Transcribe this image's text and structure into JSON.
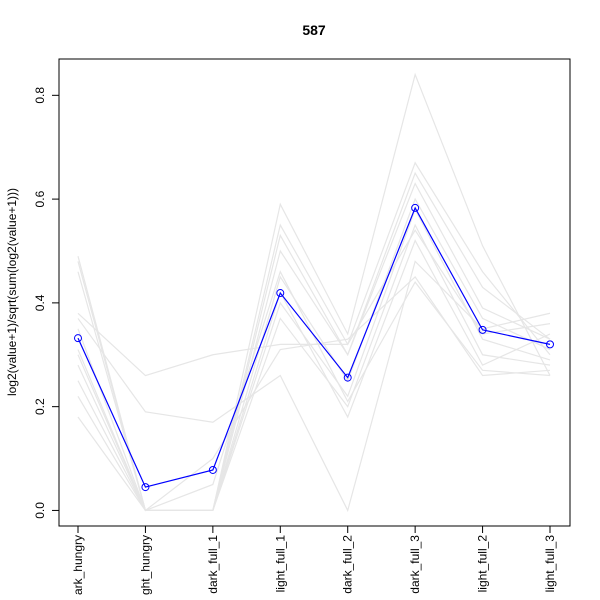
{
  "chart_data": {
    "type": "line",
    "title": "587",
    "xlabel": "",
    "ylabel": "log2(value+1)/sqrt(sum(log2(value+1)))",
    "ylim": [
      -0.03,
      0.87
    ],
    "yticks": [
      0.0,
      0.2,
      0.4,
      0.6,
      0.8
    ],
    "ytick_labels": [
      "0.0",
      "0.2",
      "0.4",
      "0.6",
      "0.8"
    ],
    "categories": [
      "dark_hungry",
      "light_hungry",
      "dark_full_1",
      "light_full_1",
      "dark_full_2",
      "dark_full_3",
      "light_full_2",
      "light_full_3"
    ],
    "category_labels": [
      "ark_hungry",
      "ght_hungry",
      "dark_full_1",
      "light_full_1",
      "dark_full_2",
      "dark_full_3",
      "light_full_2",
      "light_full_3"
    ],
    "grid": false,
    "legend": "none",
    "highlight": {
      "color": "#0000ff",
      "marker": "open-circle",
      "values": [
        0.332,
        0.045,
        0.078,
        0.419,
        0.256,
        0.583,
        0.348,
        0.32
      ]
    },
    "background_series": {
      "color": "#e6e6e6",
      "series": [
        [
          0.49,
          0.0,
          0.0,
          0.59,
          0.34,
          0.84,
          0.51,
          0.26
        ],
        [
          0.48,
          0.0,
          0.0,
          0.55,
          0.32,
          0.67,
          0.46,
          0.3
        ],
        [
          0.46,
          0.0,
          0.0,
          0.53,
          0.3,
          0.65,
          0.43,
          0.33
        ],
        [
          0.38,
          0.26,
          0.3,
          0.32,
          0.32,
          0.54,
          0.34,
          0.36
        ],
        [
          0.37,
          0.19,
          0.17,
          0.26,
          0.0,
          0.48,
          0.35,
          0.38
        ],
        [
          0.31,
          0.0,
          0.0,
          0.5,
          0.3,
          0.63,
          0.39,
          0.33
        ],
        [
          0.28,
          0.0,
          0.0,
          0.45,
          0.25,
          0.6,
          0.37,
          0.31
        ],
        [
          0.25,
          0.0,
          0.0,
          0.4,
          0.22,
          0.58,
          0.33,
          0.29
        ],
        [
          0.22,
          0.0,
          0.0,
          0.37,
          0.2,
          0.55,
          0.3,
          0.28
        ],
        [
          0.18,
          0.0,
          0.0,
          0.42,
          0.18,
          0.52,
          0.28,
          0.34
        ],
        [
          0.35,
          0.0,
          0.05,
          0.46,
          0.21,
          0.44,
          0.27,
          0.26
        ],
        [
          0.3,
          0.0,
          0.1,
          0.31,
          0.33,
          0.45,
          0.26,
          0.27
        ]
      ]
    }
  }
}
